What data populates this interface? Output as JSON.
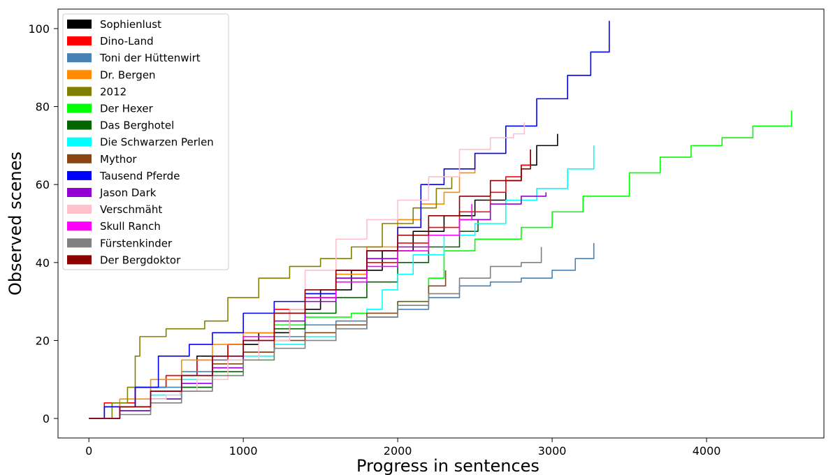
{
  "chart_data": {
    "type": "line",
    "title": "",
    "xlabel": "Progress in sentences",
    "ylabel": "Observed scenes",
    "xlim": [
      -200,
      4760
    ],
    "ylim": [
      -5,
      105
    ],
    "xticks": [
      0,
      1000,
      2000,
      3000,
      4000
    ],
    "yticks": [
      0,
      20,
      40,
      60,
      80,
      100
    ],
    "xtick_labels": [
      "0",
      "1000",
      "2000",
      "3000",
      "4000"
    ],
    "ytick_labels": [
      "0",
      "20",
      "40",
      "60",
      "80",
      "100"
    ],
    "grid": false,
    "legend_position": "top-left",
    "series": [
      {
        "name": "Sophienlust",
        "color": "#000000",
        "points": [
          [
            0,
            0
          ],
          [
            100,
            3
          ],
          [
            300,
            8
          ],
          [
            500,
            11
          ],
          [
            700,
            16
          ],
          [
            900,
            19
          ],
          [
            1100,
            22
          ],
          [
            1300,
            28
          ],
          [
            1500,
            33
          ],
          [
            1700,
            38
          ],
          [
            1900,
            43
          ],
          [
            2100,
            48
          ],
          [
            2300,
            52
          ],
          [
            2500,
            56
          ],
          [
            2700,
            61
          ],
          [
            2800,
            65
          ],
          [
            2900,
            70
          ],
          [
            3035,
            73
          ]
        ]
      },
      {
        "name": "Dino-Land",
        "color": "#ff0000",
        "points": [
          [
            0,
            0
          ],
          [
            100,
            4
          ],
          [
            300,
            8
          ],
          [
            500,
            11
          ],
          [
            700,
            15
          ],
          [
            900,
            19
          ],
          [
            1000,
            22
          ],
          [
            1200,
            28
          ],
          [
            1400,
            31
          ],
          [
            1600,
            36
          ],
          [
            1800,
            40
          ],
          [
            2000,
            45
          ],
          [
            2200,
            49
          ],
          [
            2400,
            53
          ],
          [
            2600,
            58
          ],
          [
            2700,
            62
          ],
          [
            2800,
            65
          ],
          [
            2860,
            69
          ]
        ]
      },
      {
        "name": "Toni der Hüttenwirt",
        "color": "#4682b4",
        "points": [
          [
            0,
            0
          ],
          [
            200,
            3
          ],
          [
            400,
            8
          ],
          [
            600,
            12
          ],
          [
            800,
            15
          ],
          [
            1000,
            17
          ],
          [
            1200,
            21
          ],
          [
            1400,
            24
          ],
          [
            1600,
            25
          ],
          [
            1800,
            26
          ],
          [
            2000,
            28
          ],
          [
            2200,
            31
          ],
          [
            2400,
            34
          ],
          [
            2600,
            35
          ],
          [
            2800,
            36
          ],
          [
            3000,
            38
          ],
          [
            3150,
            41
          ],
          [
            3270,
            45
          ]
        ]
      },
      {
        "name": "Dr. Bergen",
        "color": "#ff8c00",
        "points": [
          [
            0,
            0
          ],
          [
            200,
            5
          ],
          [
            400,
            10
          ],
          [
            600,
            15
          ],
          [
            800,
            19
          ],
          [
            1000,
            22
          ],
          [
            1200,
            27
          ],
          [
            1400,
            32
          ],
          [
            1600,
            37
          ],
          [
            1800,
            44
          ],
          [
            2000,
            51
          ],
          [
            2150,
            55
          ],
          [
            2300,
            58
          ],
          [
            2400,
            63
          ],
          [
            2500,
            67
          ]
        ]
      },
      {
        "name": "2012",
        "color": "#808000",
        "points": [
          [
            0,
            0
          ],
          [
            150,
            4
          ],
          [
            250,
            8
          ],
          [
            300,
            16
          ],
          [
            330,
            21
          ],
          [
            500,
            23
          ],
          [
            750,
            25
          ],
          [
            900,
            31
          ],
          [
            1100,
            36
          ],
          [
            1300,
            39
          ],
          [
            1500,
            41
          ],
          [
            1700,
            44
          ],
          [
            1900,
            50
          ],
          [
            2100,
            54
          ],
          [
            2250,
            59
          ],
          [
            2350,
            62
          ]
        ]
      },
      {
        "name": "Der Hexer",
        "color": "#00ff00",
        "points": [
          [
            0,
            0
          ],
          [
            200,
            2
          ],
          [
            400,
            5
          ],
          [
            600,
            8
          ],
          [
            800,
            11
          ],
          [
            1000,
            15
          ],
          [
            1200,
            24
          ],
          [
            1400,
            26
          ],
          [
            1700,
            27
          ],
          [
            2000,
            30
          ],
          [
            2200,
            36
          ],
          [
            2300,
            43
          ],
          [
            2500,
            46
          ],
          [
            2800,
            49
          ],
          [
            3000,
            53
          ],
          [
            3200,
            57
          ],
          [
            3500,
            63
          ],
          [
            3700,
            67
          ],
          [
            3900,
            70
          ],
          [
            4100,
            72
          ],
          [
            4300,
            75
          ],
          [
            4550,
            79
          ]
        ]
      },
      {
        "name": "Das Berghotel",
        "color": "#006400",
        "points": [
          [
            0,
            0
          ],
          [
            200,
            2
          ],
          [
            400,
            5
          ],
          [
            600,
            8
          ],
          [
            800,
            12
          ],
          [
            1000,
            17
          ],
          [
            1200,
            23
          ],
          [
            1400,
            27
          ],
          [
            1600,
            31
          ],
          [
            1800,
            35
          ],
          [
            2000,
            40
          ],
          [
            2200,
            44
          ],
          [
            2400,
            48
          ],
          [
            2520,
            51
          ]
        ]
      },
      {
        "name": "Die Schwarzen Perlen",
        "color": "#00ffff",
        "points": [
          [
            0,
            0
          ],
          [
            200,
            2
          ],
          [
            400,
            6
          ],
          [
            600,
            10
          ],
          [
            800,
            13
          ],
          [
            1000,
            16
          ],
          [
            1200,
            19
          ],
          [
            1400,
            21
          ],
          [
            1600,
            23
          ],
          [
            1800,
            28
          ],
          [
            1900,
            33
          ],
          [
            2000,
            37
          ],
          [
            2100,
            42
          ],
          [
            2300,
            47
          ],
          [
            2500,
            50
          ],
          [
            2700,
            56
          ],
          [
            2900,
            59
          ],
          [
            3100,
            64
          ],
          [
            3270,
            70
          ]
        ]
      },
      {
        "name": "Mythor",
        "color": "#8b4513",
        "points": [
          [
            0,
            0
          ],
          [
            200,
            3
          ],
          [
            400,
            7
          ],
          [
            600,
            11
          ],
          [
            800,
            14
          ],
          [
            1000,
            17
          ],
          [
            1200,
            20
          ],
          [
            1400,
            22
          ],
          [
            1600,
            24
          ],
          [
            1800,
            27
          ],
          [
            2000,
            30
          ],
          [
            2200,
            34
          ],
          [
            2310,
            38
          ]
        ]
      },
      {
        "name": "Tausend Pferde",
        "color": "#0000ff",
        "points": [
          [
            0,
            0
          ],
          [
            100,
            3
          ],
          [
            300,
            8
          ],
          [
            450,
            16
          ],
          [
            650,
            19
          ],
          [
            800,
            22
          ],
          [
            1000,
            27
          ],
          [
            1200,
            30
          ],
          [
            1400,
            32
          ],
          [
            1600,
            38
          ],
          [
            1800,
            43
          ],
          [
            2000,
            49
          ],
          [
            2150,
            60
          ],
          [
            2300,
            64
          ],
          [
            2500,
            68
          ],
          [
            2700,
            75
          ],
          [
            2900,
            82
          ],
          [
            3100,
            88
          ],
          [
            3250,
            94
          ],
          [
            3370,
            102
          ]
        ]
      },
      {
        "name": "Jason Dark",
        "color": "#9400d3",
        "points": [
          [
            0,
            0
          ],
          [
            200,
            2
          ],
          [
            400,
            5
          ],
          [
            600,
            9
          ],
          [
            800,
            13
          ],
          [
            1000,
            20
          ],
          [
            1200,
            25
          ],
          [
            1400,
            30
          ],
          [
            1600,
            36
          ],
          [
            1800,
            41
          ],
          [
            2000,
            44
          ],
          [
            2200,
            47
          ],
          [
            2400,
            51
          ],
          [
            2600,
            55
          ],
          [
            2800,
            57
          ],
          [
            2960,
            58
          ]
        ]
      },
      {
        "name": "Verschmäht",
        "color": "#ffc0cb",
        "points": [
          [
            400,
            5
          ],
          [
            500,
            6
          ],
          [
            590,
            7
          ],
          [
            700,
            10
          ],
          [
            900,
            15
          ],
          [
            1100,
            20
          ],
          [
            1300,
            28
          ],
          [
            1400,
            38
          ],
          [
            1600,
            46
          ],
          [
            1800,
            51
          ],
          [
            2000,
            56
          ],
          [
            2200,
            62
          ],
          [
            2400,
            69
          ],
          [
            2600,
            72
          ],
          [
            2750,
            73
          ],
          [
            2820,
            76
          ]
        ]
      },
      {
        "name": "Skull Ranch",
        "color": "#ff00ff",
        "points": [
          [
            0,
            0
          ],
          [
            200,
            3
          ],
          [
            400,
            7
          ],
          [
            600,
            11
          ],
          [
            800,
            16
          ],
          [
            1000,
            21
          ],
          [
            1200,
            27
          ],
          [
            1400,
            31
          ],
          [
            1600,
            35
          ],
          [
            1800,
            39
          ],
          [
            2000,
            43
          ],
          [
            2200,
            47
          ],
          [
            2400,
            51
          ],
          [
            2480,
            55
          ]
        ]
      },
      {
        "name": "Fürstenkinder",
        "color": "#808080",
        "points": [
          [
            0,
            0
          ],
          [
            200,
            1
          ],
          [
            400,
            4
          ],
          [
            600,
            7
          ],
          [
            800,
            11
          ],
          [
            1000,
            15
          ],
          [
            1200,
            18
          ],
          [
            1400,
            20
          ],
          [
            1600,
            23
          ],
          [
            1800,
            26
          ],
          [
            2000,
            29
          ],
          [
            2200,
            32
          ],
          [
            2400,
            36
          ],
          [
            2600,
            39
          ],
          [
            2800,
            40
          ],
          [
            2930,
            44
          ]
        ]
      },
      {
        "name": "Der Bergdoktor",
        "color": "#8b0000",
        "points": [
          [
            0,
            0
          ],
          [
            200,
            3
          ],
          [
            400,
            7
          ],
          [
            600,
            11
          ],
          [
            800,
            16
          ],
          [
            1000,
            20
          ],
          [
            1200,
            27
          ],
          [
            1400,
            33
          ],
          [
            1600,
            38
          ],
          [
            1800,
            43
          ],
          [
            2000,
            47
          ],
          [
            2200,
            52
          ],
          [
            2400,
            57
          ],
          [
            2600,
            61
          ],
          [
            2800,
            64
          ],
          [
            2860,
            69
          ]
        ]
      }
    ]
  }
}
